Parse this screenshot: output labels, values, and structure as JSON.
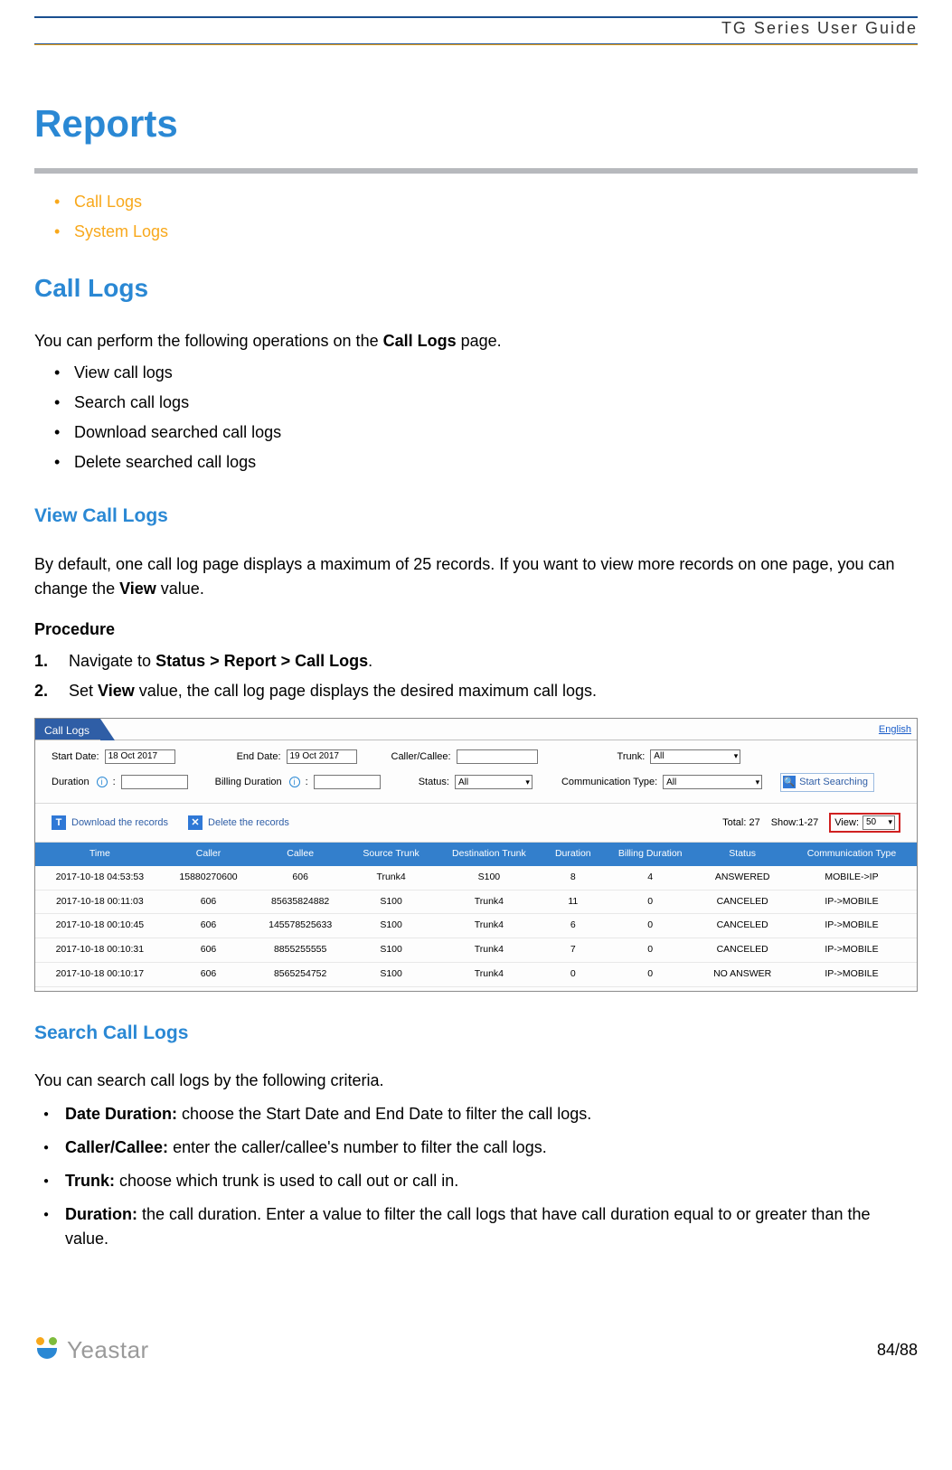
{
  "header": {
    "guide": "TG  Series  User  Guide"
  },
  "h1": "Reports",
  "toc": [
    "Call Logs",
    "System Logs"
  ],
  "section1": {
    "title": "Call Logs",
    "intro_pre": "You can perform the following operations on the ",
    "intro_bold": "Call Logs",
    "intro_post": " page.",
    "bullets": [
      "View call logs",
      "Search call logs",
      "Download searched call logs",
      "Delete searched call logs"
    ]
  },
  "view": {
    "title": "View Call Logs",
    "para_pre": "By default, one call log page displays a maximum of 25 records. If you want to view more records on one page, you can change the ",
    "para_bold": "View",
    "para_post": " value.",
    "procedure": "Procedure",
    "steps": [
      {
        "pre": "Navigate to ",
        "bold": "Status > Report > Call Logs",
        "post": "."
      },
      {
        "pre": "Set ",
        "bold": "View",
        "post": " value, the call log page displays the desired maximum call logs."
      }
    ]
  },
  "screenshot": {
    "tab": "Call Logs",
    "english": "English",
    "labels": {
      "start": "Start Date:",
      "end": "End Date:",
      "cc": "Caller/Callee:",
      "trunk": "Trunk:",
      "dur": "Duration",
      "bdur": "Billing Duration",
      "status": "Status:",
      "ctype": "Communication Type:",
      "search": "Start Searching",
      "download": "Download the records",
      "delete": "Delete the records",
      "total": "Total: 27",
      "show": "Show:1-27",
      "view": "View:",
      "view_val": "50"
    },
    "values": {
      "start": "18 Oct 2017",
      "end": "19 Oct 2017",
      "trunk": "All",
      "status": "All",
      "ctype": "All"
    },
    "cols": [
      "Time",
      "Caller",
      "Callee",
      "Source Trunk",
      "Destination Trunk",
      "Duration",
      "Billing Duration",
      "Status",
      "Communication Type"
    ],
    "rows": [
      [
        "2017-10-18 04:53:53",
        "15880270600",
        "606",
        "Trunk4",
        "S100",
        "8",
        "4",
        "ANSWERED",
        "MOBILE->IP"
      ],
      [
        "2017-10-18 00:11:03",
        "606",
        "85635824882",
        "S100",
        "Trunk4",
        "11",
        "0",
        "CANCELED",
        "IP->MOBILE"
      ],
      [
        "2017-10-18 00:10:45",
        "606",
        "145578525633",
        "S100",
        "Trunk4",
        "6",
        "0",
        "CANCELED",
        "IP->MOBILE"
      ],
      [
        "2017-10-18 00:10:31",
        "606",
        "8855255555",
        "S100",
        "Trunk4",
        "7",
        "0",
        "CANCELED",
        "IP->MOBILE"
      ],
      [
        "2017-10-18 00:10:17",
        "606",
        "8565254752",
        "S100",
        "Trunk4",
        "0",
        "0",
        "NO ANSWER",
        "IP->MOBILE"
      ]
    ]
  },
  "search": {
    "title": "Search Call Logs",
    "intro": "You can search call logs by the following criteria.",
    "criteria": [
      {
        "label": "Date Duration:",
        "desc": " choose the Start Date and End Date to filter the call logs."
      },
      {
        "label": "Caller/Callee:",
        "desc": " enter the caller/callee's number to filter the call logs."
      },
      {
        "label": "Trunk:",
        "desc": " choose which trunk is used to call out or call in."
      },
      {
        "label": "Duration:",
        "desc": " the call duration. Enter a value to filter the call logs that have call duration equal to or greater than the value."
      }
    ]
  },
  "footer": {
    "brand": "Yeastar",
    "page": "84/88"
  }
}
